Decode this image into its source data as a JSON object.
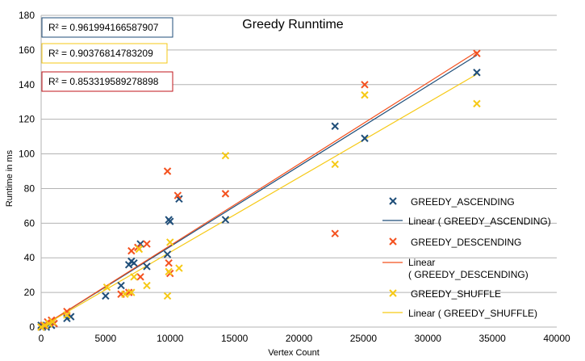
{
  "chart_data": {
    "type": "scatter",
    "title": "Greedy Runntime",
    "xlabel": "Vertex Count",
    "ylabel": "Runtime in ms",
    "xlim": [
      0,
      40000
    ],
    "ylim": [
      0,
      180
    ],
    "xticks": [
      0,
      5000,
      10000,
      15000,
      20000,
      25000,
      30000,
      35000,
      40000
    ],
    "yticks": [
      0,
      20,
      40,
      60,
      80,
      100,
      120,
      140,
      160,
      180
    ],
    "grid": "horizontal",
    "legend_position": "right",
    "series": [
      {
        "name": "GREEDY_ASCENDING",
        "color": "#1f4e79",
        "marker": "x",
        "trendline_label": "Linear ( GREEDY_ASCENDING)",
        "r_squared": "R² = 0.961994166587907",
        "trend": [
          [
            0,
            0
          ],
          [
            33800,
            157
          ]
        ],
        "x": [
          0,
          100,
          200,
          400,
          600,
          800,
          1000,
          2000,
          2300,
          5000,
          6200,
          6800,
          7000,
          7200,
          7700,
          8200,
          9800,
          10000,
          9900,
          10700,
          14300,
          22800,
          25100,
          33800
        ],
        "y": [
          1,
          0,
          1,
          0,
          2,
          1,
          2,
          5,
          6,
          18,
          24,
          36,
          38,
          37,
          48,
          35,
          42,
          61,
          62,
          74,
          62,
          116,
          109,
          147
        ]
      },
      {
        "name": "GREEDY_DESCENDING",
        "color": "#f4511e",
        "marker": "x",
        "trendline_label": "Linear ( GREEDY_DESCENDING)",
        "r_squared": "R² = 0.853319589278898",
        "trend": [
          [
            0,
            0
          ],
          [
            33800,
            159
          ]
        ],
        "x": [
          0,
          200,
          500,
          800,
          1000,
          2000,
          6200,
          6800,
          7000,
          7500,
          7700,
          8200,
          9800,
          9900,
          10000,
          10600,
          14300,
          22800,
          25100,
          33800
        ],
        "y": [
          0,
          1,
          3,
          4,
          2,
          9,
          19,
          20,
          44,
          46,
          29,
          48,
          90,
          37,
          31,
          76,
          77,
          54,
          140,
          158
        ],
        "extra": []
      },
      {
        "name": "GREEDY_SHUFFLE",
        "color": "#f6c915",
        "marker": "x",
        "trendline_label": "Linear ( GREEDY_SHUFFLE)",
        "r_squared": "R² = 0.90376814783209",
        "trend": [
          [
            0,
            0
          ],
          [
            33800,
            146
          ]
        ],
        "x": [
          0,
          300,
          600,
          900,
          2000,
          5100,
          6500,
          7000,
          7200,
          7600,
          8200,
          9800,
          9900,
          10000,
          10700,
          14300,
          22800,
          25100,
          33800
        ],
        "y": [
          0,
          1,
          2,
          3,
          7,
          23,
          19,
          20,
          29,
          45,
          24,
          18,
          32,
          49,
          34,
          99,
          94,
          134,
          129
        ]
      }
    ]
  }
}
